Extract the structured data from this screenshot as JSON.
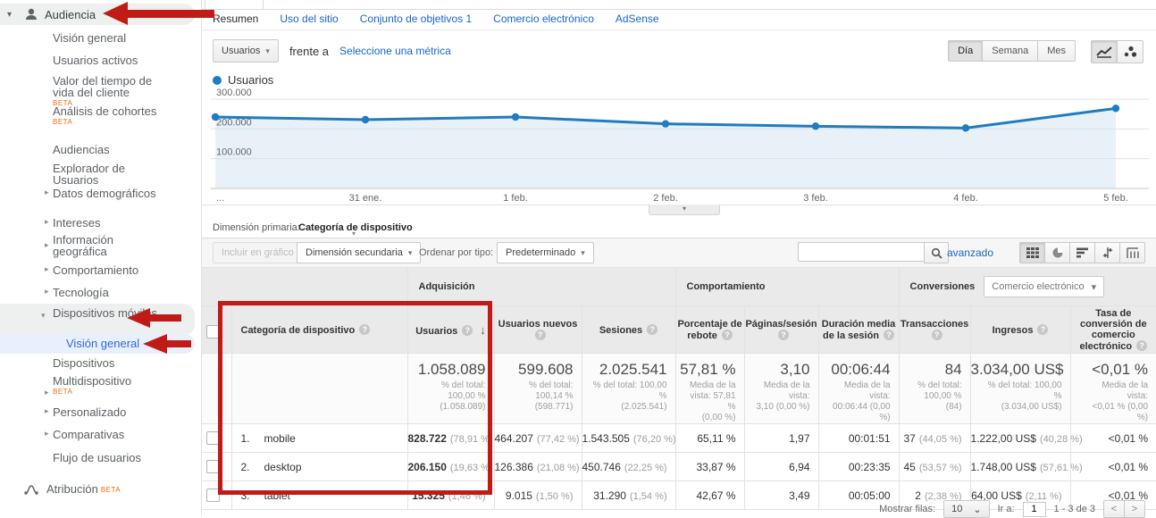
{
  "labels": {
    "beta": "BETA"
  },
  "icons": {
    "caret_down": "▾",
    "caret_right": "▸",
    "dropdown_caret": "▾",
    "select_caret": "⌄",
    "sort_desc": "↓",
    "help": "?",
    "prev": "<",
    "next": ">",
    "expander_caret": "▾"
  },
  "sidebar": {
    "section_label": "Audiencia",
    "items": [
      {
        "label": "Visión general"
      },
      {
        "label": "Usuarios activos"
      },
      {
        "label": "Valor del tiempo de vida del cliente",
        "beta": "BETA"
      },
      {
        "label": "Análisis de cohortes",
        "beta": "BETA"
      },
      {
        "label": "Audiencias"
      },
      {
        "label": "Explorador de Usuarios"
      },
      {
        "label": "Datos demográficos"
      },
      {
        "label": "Intereses"
      },
      {
        "label": "Información geográfica"
      },
      {
        "label": "Comportamiento"
      },
      {
        "label": "Tecnología"
      },
      {
        "label": "Dispositivos móviles"
      },
      {
        "label": "Visión general"
      },
      {
        "label": "Dispositivos"
      },
      {
        "label": "Multidispositivo",
        "beta": "BETA"
      },
      {
        "label": "Personalizado"
      },
      {
        "label": "Comparativas"
      },
      {
        "label": "Flujo de usuarios"
      }
    ],
    "attribution_label": "Atribución"
  },
  "report_nav": {
    "tabs": [
      {
        "label": "Resumen"
      },
      {
        "label": "Uso del sitio"
      },
      {
        "label": "Conjunto de objetivos 1"
      },
      {
        "label": "Comercio electrónico"
      },
      {
        "label": "AdSense"
      }
    ]
  },
  "metric_bar": {
    "metric_select": "Usuarios",
    "versus": "frente a",
    "select_metric_link": "Seleccione una métrica",
    "granularity": {
      "day": "Día",
      "week": "Semana",
      "month": "Mes"
    }
  },
  "chart_data": {
    "type": "line",
    "series": [
      {
        "name": "Usuarios",
        "values": [
          240000,
          231000,
          240000,
          217000,
          209000,
          203000,
          269000
        ]
      }
    ],
    "x": [
      "...",
      "31 ene.",
      "1 feb.",
      "2 feb.",
      "3 feb.",
      "4 feb.",
      "5 feb."
    ],
    "ylim": [
      0,
      300000
    ],
    "yticks": [
      {
        "value": 100000,
        "label": "100.000"
      },
      {
        "value": 200000,
        "label": "200.000"
      },
      {
        "value": 300000,
        "label": "300.000"
      }
    ],
    "grid": true,
    "legend_position": "top-left",
    "line_color": "#1f7cc2",
    "fill_color": "#e9f1f8"
  },
  "dimension_bar": {
    "label": "Dimensión primaria:",
    "value": "Categoría de dispositivo"
  },
  "table_toolbar": {
    "include_in_chart": "Incluir en gráfico",
    "secondary_dimension": "Dimensión secundaria",
    "sort_type_label": "Ordenar por tipo:",
    "sort_type_value": "Predeterminado",
    "advanced_link": "avanzado",
    "search_value": ""
  },
  "table": {
    "groups": [
      {
        "label": "Adquisición"
      },
      {
        "label": "Comportamiento"
      },
      {
        "label": "Conversiones",
        "selector_value": "Comercio electrónico"
      }
    ],
    "row_dimension_header": "Categoría de dispositivo",
    "columns": [
      {
        "label": "Usuarios"
      },
      {
        "label": "Usuarios nuevos"
      },
      {
        "label": "Sesiones"
      },
      {
        "label": "Porcentaje de rebote"
      },
      {
        "label": "Páginas/sesión"
      },
      {
        "label": "Duración media de la sesión"
      },
      {
        "label": "Transacciones"
      },
      {
        "label": "Ingresos"
      },
      {
        "label": "Tasa de conversión de comercio electrónico"
      }
    ],
    "totals": [
      {
        "main": "1.058.089",
        "sub1": "% del total: 100,00 %",
        "sub2": "(1.058.089)"
      },
      {
        "main": "599.608",
        "sub1": "% del total: 100,14 %",
        "sub2": "(598.771)"
      },
      {
        "main": "2.025.541",
        "sub1": "% del total: 100,00 %",
        "sub2": "(2.025.541)"
      },
      {
        "main": "57,81 %",
        "sub1": "Media de la vista: 57,81 %",
        "sub2": "(0,00 %)"
      },
      {
        "main": "3,10",
        "sub1": "Media de la vista:",
        "sub2": "3,10 (0,00 %)"
      },
      {
        "main": "00:06:44",
        "sub1": "Media de la vista:",
        "sub2": "00:06:44 (0,00 %)"
      },
      {
        "main": "84",
        "sub1": "% del total:",
        "sub2": "100,00 % (84)"
      },
      {
        "main": "3.034,00 US$",
        "sub1": "% del total: 100,00 %",
        "sub2": "(3.034,00 US$)"
      },
      {
        "main": "<0,01 %",
        "sub1": "Media de la vista:",
        "sub2": "<0,01 % (0,00 %)"
      }
    ],
    "rows": [
      {
        "rank": "1.",
        "name": "mobile",
        "cells": [
          {
            "main": "828.722",
            "sub": "(78,91 %)"
          },
          {
            "main": "464.207",
            "sub": "(77,42 %)"
          },
          {
            "main": "1.543.505",
            "sub": "(76,20 %)"
          },
          {
            "main": "65,11 %"
          },
          {
            "main": "1,97"
          },
          {
            "main": "00:01:51"
          },
          {
            "main": "37",
            "sub": "(44,05 %)"
          },
          {
            "main": "1.222,00 US$",
            "sub": "(40,28 %)"
          },
          {
            "main": "<0,01 %"
          }
        ]
      },
      {
        "rank": "2.",
        "name": "desktop",
        "cells": [
          {
            "main": "206.150",
            "sub": "(19,63 %)"
          },
          {
            "main": "126.386",
            "sub": "(21,08 %)"
          },
          {
            "main": "450.746",
            "sub": "(22,25 %)"
          },
          {
            "main": "33,87 %"
          },
          {
            "main": "6,94"
          },
          {
            "main": "00:23:35"
          },
          {
            "main": "45",
            "sub": "(53,57 %)"
          },
          {
            "main": "1.748,00 US$",
            "sub": "(57,61 %)"
          },
          {
            "main": "<0,01 %"
          }
        ]
      },
      {
        "rank": "3.",
        "name": "tablet",
        "cells": [
          {
            "main": "15.325",
            "sub": "(1,46 %)"
          },
          {
            "main": "9.015",
            "sub": "(1,50 %)"
          },
          {
            "main": "31.290",
            "sub": "(1,54 %)"
          },
          {
            "main": "42,67 %"
          },
          {
            "main": "3,49"
          },
          {
            "main": "00:05:00"
          },
          {
            "main": "2",
            "sub": "(2,38 %)"
          },
          {
            "main": "64,00 US$",
            "sub": "(2,11 %)"
          },
          {
            "main": "<0,01 %"
          }
        ]
      }
    ]
  },
  "footer": {
    "show_rows_label": "Mostrar filas:",
    "show_rows_value": "10",
    "goto_label": "Ir a:",
    "goto_value": "1",
    "range_text": "1 - 3 de 3"
  }
}
